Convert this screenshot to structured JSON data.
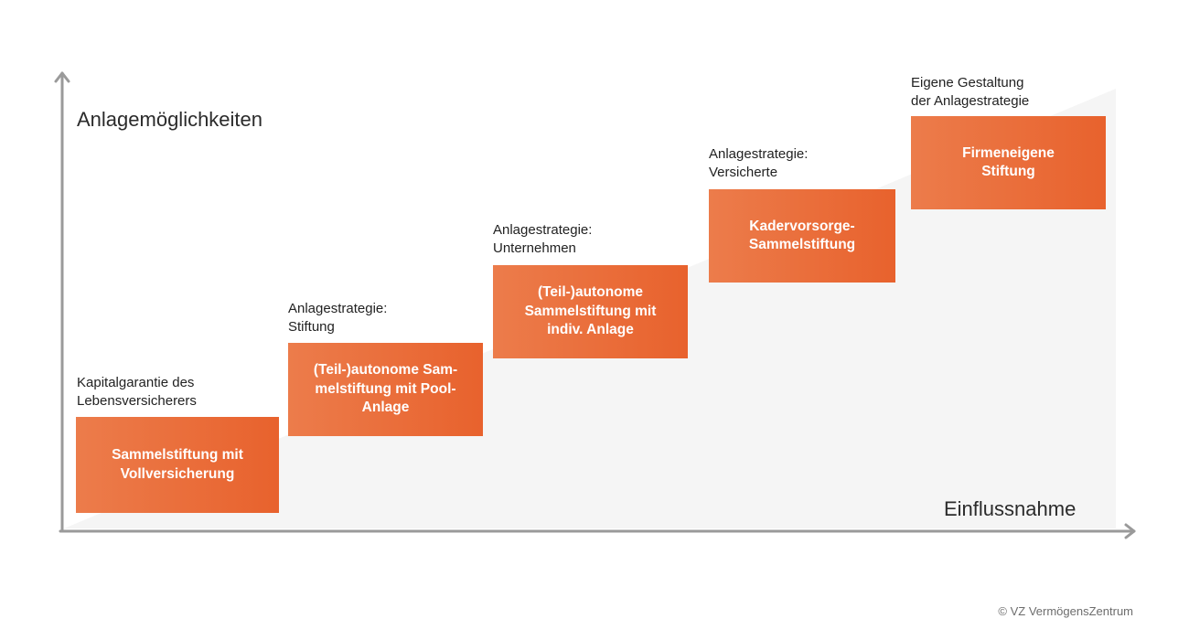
{
  "axes": {
    "y_label": "Anlagemöglichkeiten",
    "x_label": "Einflussnahme"
  },
  "steps": [
    {
      "caption": [
        "Kapitalgarantie des",
        "Lebensversicherers"
      ],
      "box": [
        "Sammelstiftung mit",
        "Vollversicherung"
      ]
    },
    {
      "caption": [
        "Anlagestrategie:",
        "Stiftung"
      ],
      "box": [
        "(Teil-)autonome Sam-",
        "melstiftung mit Pool-",
        "Anlage"
      ]
    },
    {
      "caption": [
        "Anlagestrategie:",
        "Unternehmen"
      ],
      "box": [
        "(Teil-)autonome",
        "Sammelstiftung mit",
        "indiv. Anlage"
      ]
    },
    {
      "caption": [
        "Anlagestrategie:",
        "Versicherte"
      ],
      "box": [
        "Kadervorsorge-",
        "Sammelstiftung"
      ]
    },
    {
      "caption": [
        "Eigene Gestaltung",
        "der Anlagestrategie"
      ],
      "box": [
        "Firmeneigene",
        "Stiftung"
      ]
    }
  ],
  "colors": {
    "box_start": "#ec7c4b",
    "box_end": "#e8622d",
    "axis": "#9a9a9a",
    "backdrop": "#f5f5f5"
  },
  "footer": {
    "copyright": "© VZ VermögensZentrum"
  }
}
